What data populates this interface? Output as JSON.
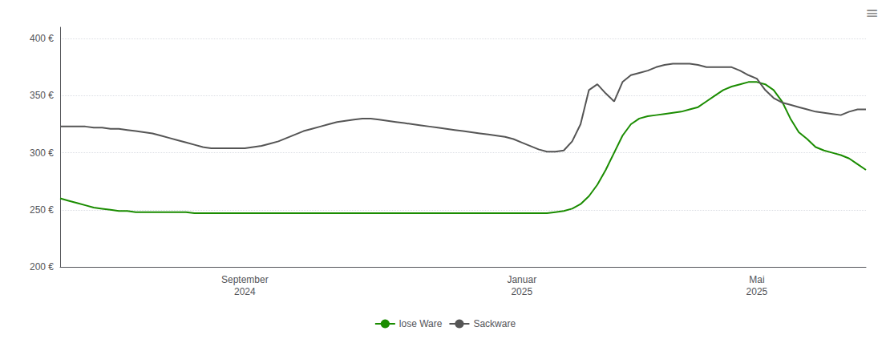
{
  "chart_data": {
    "type": "line",
    "categories": [
      null,
      null,
      null,
      null,
      null,
      null,
      null,
      null,
      null,
      null,
      null,
      null,
      null,
      null,
      null,
      null,
      null,
      null,
      null,
      null,
      null,
      null,
      "September\n2024",
      null,
      null,
      null,
      null,
      null,
      null,
      null,
      null,
      null,
      null,
      null,
      null,
      null,
      null,
      null,
      null,
      null,
      null,
      null,
      null,
      null,
      null,
      null,
      null,
      null,
      null,
      null,
      null,
      null,
      null,
      null,
      null,
      "Januar\n2025",
      null,
      null,
      null,
      null,
      null,
      null,
      null,
      null,
      null,
      null,
      null,
      null,
      null,
      null,
      null,
      null,
      null,
      null,
      null,
      null,
      null,
      null,
      null,
      null,
      null,
      null,
      null,
      "Mai\n2025",
      null,
      null,
      null,
      null,
      null,
      null,
      null,
      null,
      null,
      null,
      null,
      null,
      null
    ],
    "series": [
      {
        "name": "lose Ware",
        "color": "#1a8c00",
        "values": [
          260,
          258,
          256,
          254,
          252,
          251,
          250,
          249,
          249,
          248,
          248,
          248,
          248,
          248,
          248,
          248,
          247,
          247,
          247,
          247,
          247,
          247,
          247,
          247,
          247,
          247,
          247,
          247,
          247,
          247,
          247,
          247,
          247,
          247,
          247,
          247,
          247,
          247,
          247,
          247,
          247,
          247,
          247,
          247,
          247,
          247,
          247,
          247,
          247,
          247,
          247,
          247,
          247,
          247,
          247,
          247,
          247,
          247,
          247,
          248,
          249,
          251,
          255,
          262,
          272,
          285,
          300,
          315,
          325,
          330,
          332,
          333,
          334,
          335,
          336,
          338,
          340,
          345,
          350,
          355,
          358,
          360,
          362,
          362,
          360,
          355,
          345,
          330,
          318,
          312,
          305,
          302,
          300,
          298,
          295,
          290,
          285
        ]
      },
      {
        "name": "Sackware",
        "color": "#555555",
        "values": [
          323,
          323,
          323,
          323,
          322,
          322,
          321,
          321,
          320,
          319,
          318,
          317,
          315,
          313,
          311,
          309,
          307,
          305,
          304,
          304,
          304,
          304,
          304,
          305,
          306,
          308,
          310,
          313,
          316,
          319,
          321,
          323,
          325,
          327,
          328,
          329,
          330,
          330,
          329,
          328,
          327,
          326,
          325,
          324,
          323,
          322,
          321,
          320,
          319,
          318,
          317,
          316,
          315,
          314,
          312,
          309,
          306,
          303,
          301,
          301,
          302,
          310,
          325,
          355,
          360,
          352,
          345,
          362,
          368,
          370,
          372,
          375,
          377,
          378,
          378,
          378,
          377,
          375,
          375,
          375,
          375,
          372,
          368,
          365,
          355,
          348,
          344,
          342,
          340,
          338,
          336,
          335,
          334,
          333,
          336,
          338,
          338
        ]
      }
    ],
    "ylim": [
      200,
      410
    ],
    "yticks": [
      {
        "value": 200,
        "label": "200 €"
      },
      {
        "value": 250,
        "label": "250 €"
      },
      {
        "value": 300,
        "label": "300 €"
      },
      {
        "value": 350,
        "label": "350 €"
      },
      {
        "value": 400,
        "label": "400 €"
      }
    ],
    "grid": true,
    "legend": "bottom",
    "annotations": [
      {
        "text": "≡"
      }
    ]
  }
}
